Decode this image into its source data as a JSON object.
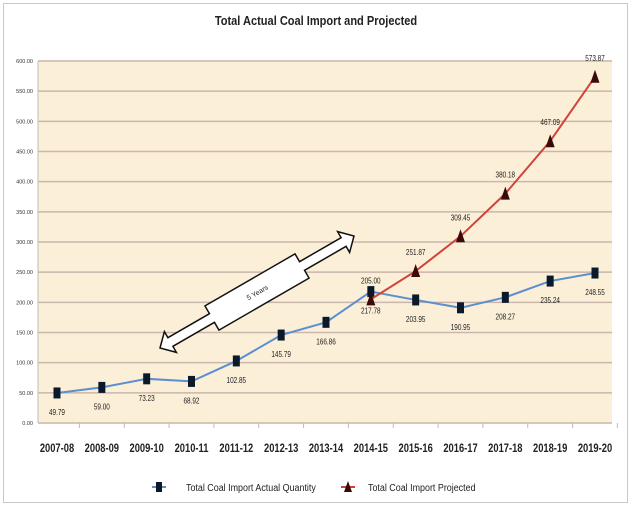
{
  "chart_data": {
    "type": "line",
    "title": "Total Actual Coal Import and Projected",
    "xlabel": "",
    "ylabel": "",
    "categories": [
      "2007-08",
      "2008-09",
      "2009-10",
      "2010-11",
      "2011-12",
      "2012-13",
      "2013-14",
      "2014-15",
      "2015-16",
      "2016-17",
      "2017-18",
      "2018-19",
      "2019-20"
    ],
    "ylim": [
      0,
      600
    ],
    "yticks": [
      "0.00",
      "50.00",
      "100.00",
      "150.00",
      "200.00",
      "250.00",
      "300.00",
      "350.00",
      "400.00",
      "450.00",
      "500.00",
      "550.00",
      "600.00"
    ],
    "grid": true,
    "legend_position": "bottom",
    "series": [
      {
        "name": "Total Coal Import Actual Quantity",
        "color": "#5b8fd0",
        "marker": "square",
        "values": [
          49.79,
          59.0,
          73.23,
          68.92,
          102.85,
          145.79,
          166.86,
          217.78,
          203.95,
          190.95,
          208.27,
          235.24,
          248.55
        ],
        "labels": [
          "49.79",
          "59.00",
          "73.23",
          "68.92",
          "102.85",
          "145.79",
          "166.86",
          "217.78",
          "203.95",
          "190.95",
          "208.27",
          "235.24",
          "248.55"
        ]
      },
      {
        "name": "Total Coal Import Projected",
        "color": "#d0423b",
        "marker": "triangle",
        "values": [
          null,
          null,
          null,
          null,
          null,
          null,
          null,
          205.0,
          251.87,
          309.45,
          380.18,
          467.09,
          573.87
        ],
        "labels": [
          "",
          "",
          "",
          "",
          "",
          "",
          "",
          "205.00",
          "251.87",
          "309.45",
          "380.18",
          "467.09",
          "573.87"
        ]
      }
    ],
    "annotations": [
      {
        "text": "5 Years",
        "type": "double-arrow",
        "from_category": "2009-10",
        "to_category": "2014-15"
      }
    ],
    "colors": {
      "plot_background": "#fcefd8",
      "gridline": "#c9b6ac"
    }
  }
}
